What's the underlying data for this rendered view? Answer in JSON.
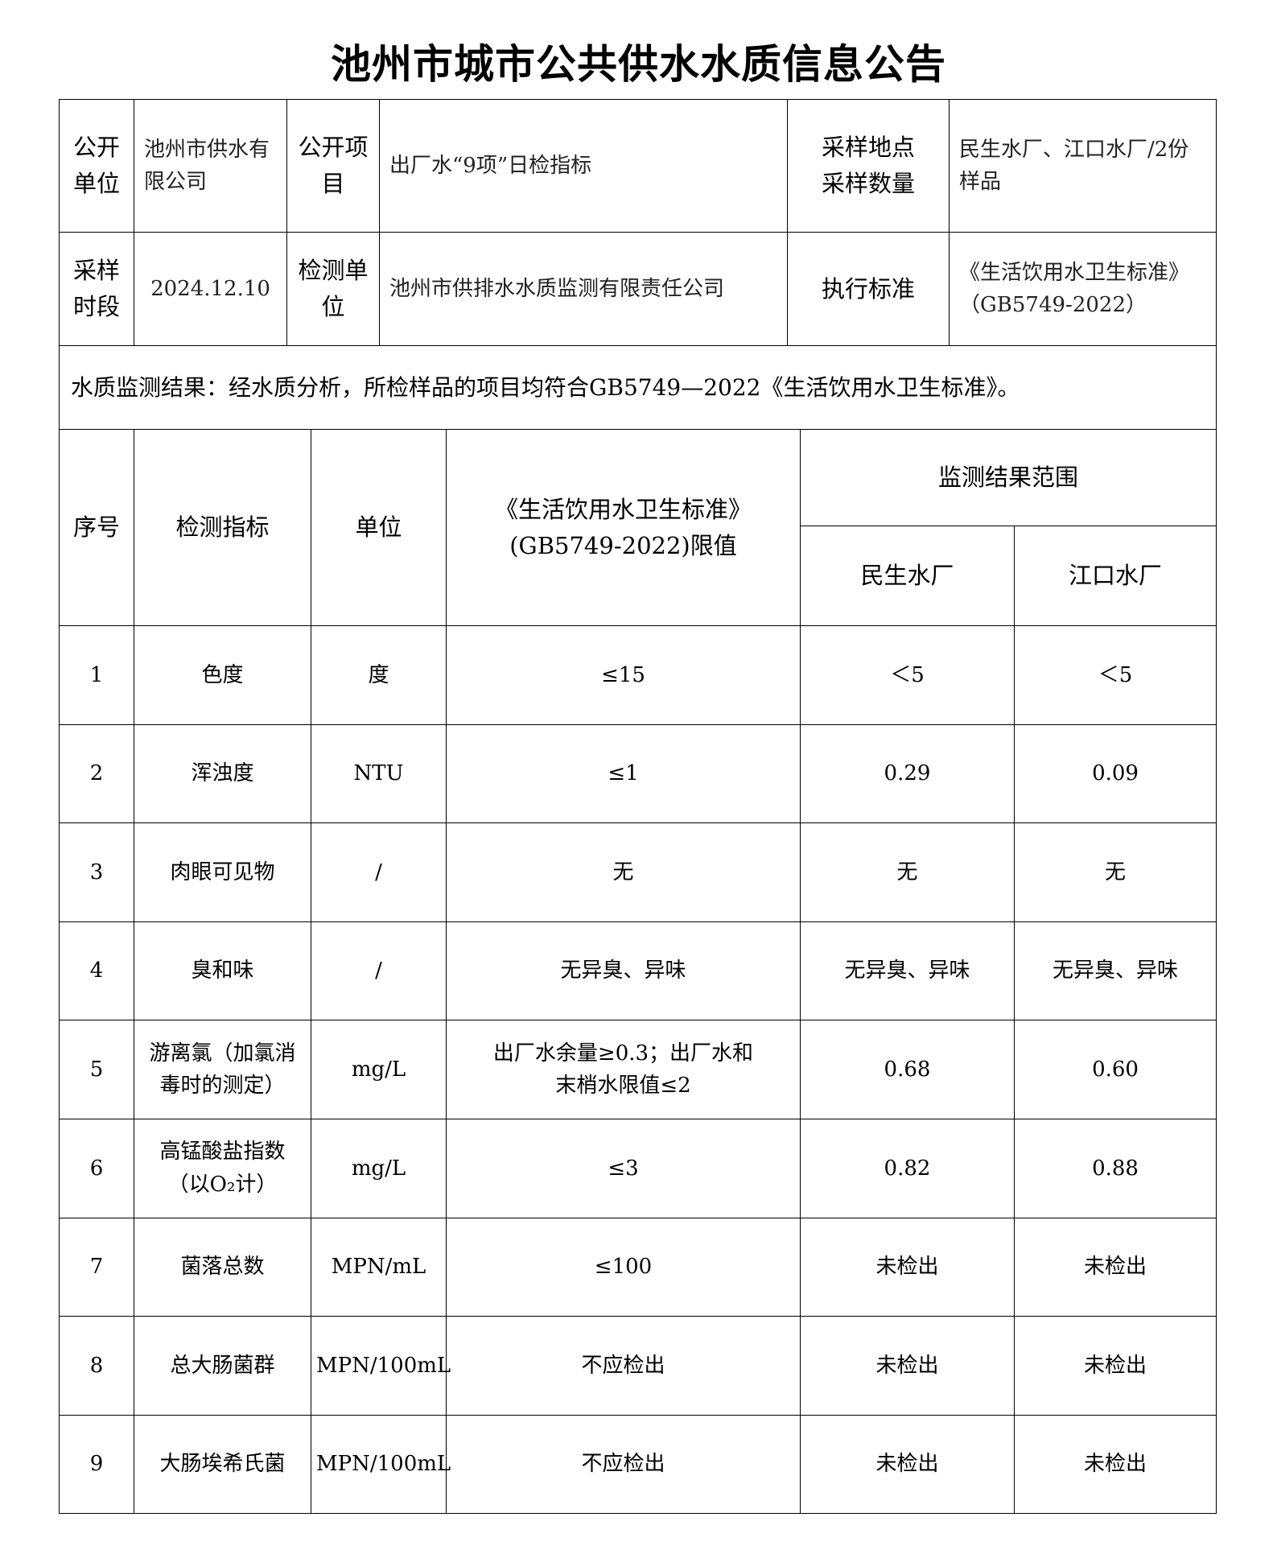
{
  "title": "池州市城市公共供水水质信息公告",
  "info": {
    "publish_unit_label": "公开单位",
    "publish_unit": "池州市供水有限公司",
    "publish_item_label": "公开项目",
    "publish_item": "出厂水“9项”日检指标",
    "sampling_site_label": "采样地点采样数量",
    "sampling_site": "民生水厂、江口水厂/2份样品",
    "sampling_period_label": "采样时段",
    "sampling_period": "2024.12.10",
    "test_unit_label": "检测单位",
    "test_unit": "池州市供排水水质监测有限责任公司",
    "standard_label": "执行标准",
    "standard": "《生活饮用水卫生标准》（GB5749-2022）",
    "conclusion": "水质监测结果：经水质分析，所检样品的项目均符合GB5749—2022《生活饮用水卫生标准》。"
  },
  "table": {
    "headers": {
      "no": "序号",
      "indicator": "检测指标",
      "unit": "单位",
      "limit": "《生活饮用水卫生标准》(GB5749-2022)限值",
      "range": "监测结果范围",
      "plant1": "民生水厂",
      "plant2": "江口水厂"
    },
    "rows": [
      {
        "no": "1",
        "indicator": "色度",
        "unit": "度",
        "limit": "≤15",
        "plant1": "＜5",
        "plant2": "＜5"
      },
      {
        "no": "2",
        "indicator": "浑浊度",
        "unit": "NTU",
        "limit": "≤1",
        "plant1": "0.29",
        "plant2": "0.09"
      },
      {
        "no": "3",
        "indicator": "肉眼可见物",
        "unit": "/",
        "limit": "无",
        "plant1": "无",
        "plant2": "无"
      },
      {
        "no": "4",
        "indicator": "臭和味",
        "unit": "/",
        "limit": "无异臭、异味",
        "plant1": "无异臭、异味",
        "plant2": "无异臭、异味"
      },
      {
        "no": "5",
        "indicator": "游离氯（加氯消毒时的测定）",
        "unit": "mg/L",
        "limit": "出厂水余量≥0.3；出厂水和末梢水限值≤2",
        "plant1": "0.68",
        "plant2": "0.60"
      },
      {
        "no": "6",
        "indicator": "高锰酸盐指数（以O₂计）",
        "unit": "mg/L",
        "limit": "≤3",
        "plant1": "0.82",
        "plant2": "0.88"
      },
      {
        "no": "7",
        "indicator": "菌落总数",
        "unit": "MPN/mL",
        "limit": "≤100",
        "plant1": "未检出",
        "plant2": "未检出"
      },
      {
        "no": "8",
        "indicator": "总大肠菌群",
        "unit": "MPN/100mL",
        "limit": "不应检出",
        "plant1": "未检出",
        "plant2": "未检出"
      },
      {
        "no": "9",
        "indicator": "大肠埃希氏菌",
        "unit": "MPN/100mL",
        "limit": "不应检出",
        "plant1": "未检出",
        "plant2": "未检出"
      }
    ]
  }
}
